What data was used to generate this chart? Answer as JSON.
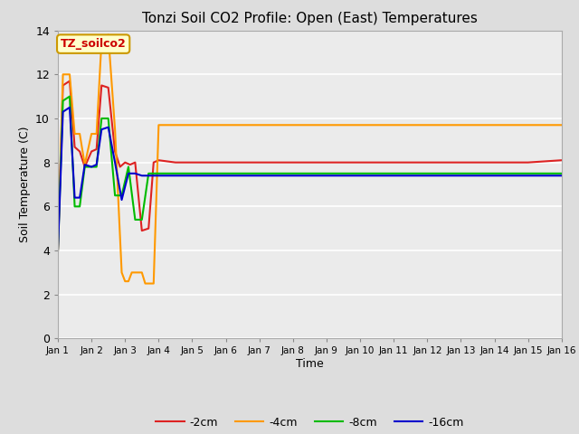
{
  "title": "Tonzi Soil CO2 Profile: Open (East) Temperatures",
  "xlabel": "Time",
  "ylabel": "Soil Temperature (C)",
  "ylim": [
    0,
    14
  ],
  "xlim": [
    0,
    15
  ],
  "background_color": "#dddddd",
  "plot_bg_color": "#ebebeb",
  "annotation_text": "TZ_soilco2",
  "annotation_box_facecolor": "#ffffcc",
  "annotation_box_edgecolor": "#cc9900",
  "annotation_text_color": "#cc0000",
  "xtick_labels": [
    "Jan 1",
    "Jan 2",
    "Jan 3",
    "Jan 4",
    "Jan 5",
    "Jan 6",
    "Jan 7",
    "Jan 8",
    "Jan 9",
    "Jan 10",
    "Jan 11",
    "Jan 12",
    "Jan 13",
    "Jan 14",
    "Jan 15",
    "Jan 16"
  ],
  "ytick_values": [
    0,
    2,
    4,
    6,
    8,
    10,
    12,
    14
  ],
  "series": {
    "-2cm": {
      "color": "#dd2222",
      "x": [
        0,
        0.15,
        0.35,
        0.5,
        0.65,
        0.8,
        1.0,
        1.15,
        1.3,
        1.5,
        1.7,
        1.85,
        2.0,
        2.15,
        2.3,
        2.5,
        2.7,
        2.85,
        3.0,
        3.5,
        4.0,
        5.0,
        6.0,
        7.0,
        8.0,
        9.0,
        10.0,
        11.0,
        12.0,
        13.0,
        14.0,
        15.0
      ],
      "y": [
        4.0,
        11.5,
        11.7,
        8.7,
        8.5,
        7.8,
        8.5,
        8.6,
        11.5,
        11.4,
        8.5,
        7.8,
        8.0,
        7.9,
        8.0,
        4.9,
        5.0,
        8.0,
        8.1,
        8.0,
        8.0,
        8.0,
        8.0,
        8.0,
        8.0,
        8.0,
        8.0,
        8.0,
        8.0,
        8.0,
        8.0,
        8.1
      ]
    },
    "-4cm": {
      "color": "#ff9900",
      "x": [
        0,
        0.15,
        0.35,
        0.5,
        0.65,
        0.8,
        1.0,
        1.15,
        1.3,
        1.5,
        1.7,
        1.9,
        2.0,
        2.1,
        2.2,
        2.35,
        2.5,
        2.6,
        2.7,
        2.85,
        3.0,
        3.5,
        4.0,
        5.0,
        6.0,
        7.0,
        8.0,
        9.0,
        10.0,
        11.0,
        12.0,
        13.0,
        14.0,
        15.0
      ],
      "y": [
        4.0,
        12.0,
        12.0,
        9.3,
        9.3,
        7.9,
        9.3,
        9.3,
        13.5,
        13.8,
        9.5,
        3.0,
        2.6,
        2.6,
        3.0,
        3.0,
        3.0,
        2.5,
        2.5,
        2.5,
        9.7,
        9.7,
        9.7,
        9.7,
        9.7,
        9.7,
        9.7,
        9.7,
        9.7,
        9.7,
        9.7,
        9.7,
        9.7,
        9.7
      ]
    },
    "-8cm": {
      "color": "#00bb00",
      "x": [
        0,
        0.15,
        0.35,
        0.5,
        0.65,
        0.8,
        1.0,
        1.15,
        1.3,
        1.5,
        1.7,
        1.9,
        2.1,
        2.3,
        2.5,
        2.7,
        2.9,
        3.0,
        3.5,
        4.0,
        5.0,
        6.0,
        7.0,
        8.0,
        9.0,
        10.0,
        11.0,
        12.0,
        13.0,
        14.0,
        15.0
      ],
      "y": [
        4.0,
        10.8,
        11.0,
        6.0,
        6.0,
        7.8,
        7.8,
        7.8,
        10.0,
        10.0,
        6.5,
        6.5,
        7.8,
        5.4,
        5.4,
        7.5,
        7.5,
        7.5,
        7.5,
        7.5,
        7.5,
        7.5,
        7.5,
        7.5,
        7.5,
        7.5,
        7.5,
        7.5,
        7.5,
        7.5,
        7.5
      ]
    },
    "-16cm": {
      "color": "#0000cc",
      "x": [
        0,
        0.15,
        0.35,
        0.5,
        0.65,
        0.8,
        1.0,
        1.15,
        1.3,
        1.5,
        1.7,
        1.9,
        2.1,
        2.3,
        2.5,
        2.7,
        2.9,
        3.0,
        3.5,
        4.0,
        5.0,
        6.0,
        7.0,
        8.0,
        9.0,
        10.0,
        11.0,
        12.0,
        13.0,
        14.0,
        15.0
      ],
      "y": [
        4.0,
        10.3,
        10.5,
        6.4,
        6.4,
        7.9,
        7.8,
        7.9,
        9.5,
        9.6,
        8.0,
        6.3,
        7.5,
        7.5,
        7.4,
        7.4,
        7.4,
        7.4,
        7.4,
        7.4,
        7.4,
        7.4,
        7.4,
        7.4,
        7.4,
        7.4,
        7.4,
        7.4,
        7.4,
        7.4,
        7.4
      ]
    }
  },
  "legend_order": [
    "-2cm",
    "-4cm",
    "-8cm",
    "-16cm"
  ],
  "legend_labels": [
    "-2cm",
    "-4cm",
    "-8cm",
    "-16cm"
  ]
}
